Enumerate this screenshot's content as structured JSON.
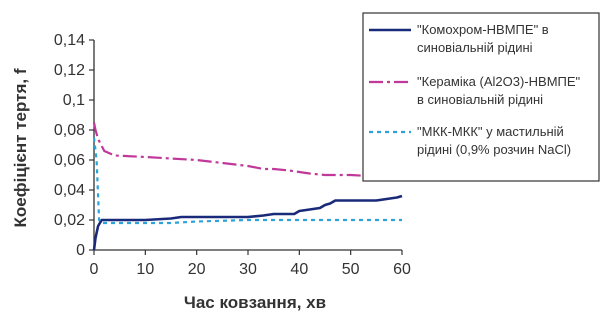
{
  "chart_data": {
    "type": "line",
    "xlabel": "Час ковзання, хв",
    "ylabel": "Коефіцієнт тертя, f",
    "xlim": [
      0,
      60
    ],
    "ylim": [
      0,
      0.14
    ],
    "x_ticks": [
      "0",
      "10",
      "20",
      "30",
      "40",
      "50",
      "60"
    ],
    "y_ticks": [
      "0",
      "0,02",
      "0,04",
      "0,06",
      "0,08",
      "0,1",
      "0,12",
      "0,14"
    ],
    "grid": false,
    "legend_position": "top-right",
    "series": [
      {
        "name_lines": [
          "\"Комохром-НВМПЕ\" в",
          "синовіальній рідині"
        ],
        "color": "#1a2a7a",
        "dash": "solid",
        "points": [
          [
            0,
            0
          ],
          [
            0.3,
            0.008
          ],
          [
            0.8,
            0.016
          ],
          [
            1.5,
            0.02
          ],
          [
            5,
            0.02
          ],
          [
            10,
            0.02
          ],
          [
            15,
            0.021
          ],
          [
            17,
            0.022
          ],
          [
            25,
            0.022
          ],
          [
            30,
            0.022
          ],
          [
            33,
            0.023
          ],
          [
            35,
            0.024
          ],
          [
            39,
            0.024
          ],
          [
            40,
            0.026
          ],
          [
            42,
            0.027
          ],
          [
            44,
            0.028
          ],
          [
            45,
            0.03
          ],
          [
            46,
            0.031
          ],
          [
            47,
            0.033
          ],
          [
            50,
            0.033
          ],
          [
            55,
            0.033
          ],
          [
            57,
            0.034
          ],
          [
            59,
            0.035
          ],
          [
            60,
            0.036
          ]
        ]
      },
      {
        "name_lines": [
          "\"Кераміка (Al2O3)-НВМПЕ\"",
          "в синовіальній рідині"
        ],
        "color": "#c0389a",
        "dash": "dashdot",
        "points": [
          [
            0,
            0.085
          ],
          [
            0.3,
            0.08
          ],
          [
            0.8,
            0.074
          ],
          [
            2,
            0.066
          ],
          [
            4,
            0.063
          ],
          [
            10,
            0.062
          ],
          [
            15,
            0.061
          ],
          [
            20,
            0.06
          ],
          [
            25,
            0.058
          ],
          [
            30,
            0.056
          ],
          [
            33,
            0.054
          ],
          [
            35,
            0.054
          ],
          [
            38,
            0.053
          ],
          [
            40,
            0.052
          ],
          [
            42,
            0.051
          ],
          [
            45,
            0.05
          ],
          [
            50,
            0.05
          ],
          [
            55,
            0.049
          ],
          [
            58,
            0.048
          ],
          [
            60,
            0.048
          ]
        ]
      },
      {
        "name_lines": [
          "\"МКК-МКК\" у мастильній",
          "рідині (0,9% розчин NaCl)"
        ],
        "color": "#2aa3d8",
        "dash": "dotted",
        "points": [
          [
            0,
            0.075
          ],
          [
            0.5,
            0.06
          ],
          [
            1,
            0.02
          ],
          [
            1.5,
            0.018
          ],
          [
            10,
            0.018
          ],
          [
            15,
            0.018
          ],
          [
            20,
            0.019
          ],
          [
            30,
            0.02
          ],
          [
            40,
            0.02
          ],
          [
            50,
            0.02
          ],
          [
            60,
            0.02
          ]
        ]
      }
    ]
  }
}
